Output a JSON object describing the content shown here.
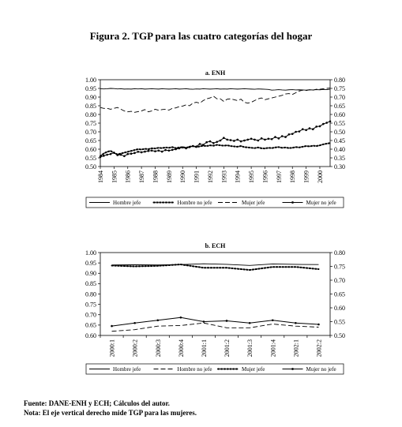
{
  "figure_title": "Figura 2. TGP para las cuatro categorías del hogar",
  "footer": {
    "source": "Fuente: DANE-ENH y ECH; Cálculos del autor.",
    "note": "Nota: El eje vertical derecho mide TGP para las mujeres."
  },
  "chart_data": [
    {
      "type": "line",
      "title": "a. ENH",
      "x_tick_labels": [
        "1984",
        "1985",
        "1986",
        "1987",
        "1988",
        "1989",
        "1990",
        "1991",
        "1992",
        "1993",
        "1994",
        "1995",
        "1996",
        "1997",
        "1998",
        "1999",
        "2000"
      ],
      "points_per_year": 4,
      "x": [
        1984.0,
        1984.25,
        1984.5,
        1984.75,
        1985.0,
        1985.25,
        1985.5,
        1985.75,
        1986.0,
        1986.25,
        1986.5,
        1986.75,
        1987.0,
        1987.25,
        1987.5,
        1987.75,
        1988.0,
        1988.25,
        1988.5,
        1988.75,
        1989.0,
        1989.25,
        1989.5,
        1989.75,
        1990.0,
        1990.25,
        1990.5,
        1990.75,
        1991.0,
        1991.25,
        1991.5,
        1991.75,
        1992.0,
        1992.25,
        1992.5,
        1992.75,
        1993.0,
        1993.25,
        1993.5,
        1993.75,
        1994.0,
        1994.25,
        1994.5,
        1994.75,
        1995.0,
        1995.25,
        1995.5,
        1995.75,
        1996.0,
        1996.25,
        1996.5,
        1996.75,
        1997.0,
        1997.25,
        1997.5,
        1997.75,
        1998.0,
        1998.25,
        1998.5,
        1998.75,
        1999.0,
        1999.25,
        1999.5,
        1999.75,
        2000.0,
        2000.25,
        2000.5,
        2000.75
      ],
      "y_left": {
        "min": 0.5,
        "max": 1.0,
        "ticks": [
          "0.50",
          "0.55",
          "0.60",
          "0.65",
          "0.70",
          "0.75",
          "0.80",
          "0.85",
          "0.90",
          "0.95",
          "1.00"
        ]
      },
      "y_right": {
        "min": 0.3,
        "max": 0.8,
        "ticks": [
          "0.30",
          "0.35",
          "0.40",
          "0.45",
          "0.50",
          "0.55",
          "0.60",
          "0.65",
          "0.70",
          "0.75",
          "0.80"
        ]
      },
      "series": [
        {
          "name": "Hombre jefe",
          "axis": "left",
          "style": "solid",
          "values": [
            0.948,
            0.947,
            0.948,
            0.95,
            0.949,
            0.947,
            0.948,
            0.946,
            0.947,
            0.946,
            0.948,
            0.947,
            0.948,
            0.946,
            0.947,
            0.948,
            0.947,
            0.946,
            0.948,
            0.947,
            0.946,
            0.947,
            0.948,
            0.946,
            0.947,
            0.948,
            0.946,
            0.945,
            0.947,
            0.946,
            0.948,
            0.947,
            0.946,
            0.947,
            0.948,
            0.946,
            0.947,
            0.946,
            0.948,
            0.947,
            0.946,
            0.947,
            0.948,
            0.947,
            0.946,
            0.945,
            0.947,
            0.946,
            0.945,
            0.944,
            0.94,
            0.941,
            0.943,
            0.941,
            0.94,
            0.942,
            0.943,
            0.941,
            0.942,
            0.941,
            0.94,
            0.942,
            0.941,
            0.943,
            0.942,
            0.944,
            0.943,
            0.945
          ]
        },
        {
          "name": "Hombre no jefe",
          "axis": "left",
          "style": "dotted",
          "values": [
            0.56,
            0.575,
            0.585,
            0.59,
            0.578,
            0.57,
            0.575,
            0.58,
            0.585,
            0.59,
            0.595,
            0.6,
            0.598,
            0.602,
            0.6,
            0.605,
            0.604,
            0.608,
            0.606,
            0.61,
            0.608,
            0.612,
            0.606,
            0.61,
            0.612,
            0.608,
            0.614,
            0.618,
            0.612,
            0.616,
            0.62,
            0.618,
            0.622,
            0.62,
            0.625,
            0.622,
            0.62,
            0.622,
            0.618,
            0.616,
            0.614,
            0.618,
            0.612,
            0.61,
            0.608,
            0.606,
            0.61,
            0.605,
            0.604,
            0.608,
            0.606,
            0.61,
            0.612,
            0.608,
            0.61,
            0.606,
            0.608,
            0.612,
            0.61,
            0.614,
            0.618,
            0.616,
            0.62,
            0.618,
            0.622,
            0.628,
            0.632,
            0.635
          ]
        },
        {
          "name": "Mujer jefe",
          "axis": "right",
          "style": "dashed",
          "values": [
            0.64,
            0.635,
            0.635,
            0.63,
            0.635,
            0.64,
            0.63,
            0.62,
            0.615,
            0.618,
            0.612,
            0.616,
            0.62,
            0.628,
            0.615,
            0.62,
            0.63,
            0.624,
            0.628,
            0.63,
            0.625,
            0.635,
            0.638,
            0.645,
            0.648,
            0.655,
            0.65,
            0.665,
            0.67,
            0.665,
            0.68,
            0.69,
            0.695,
            0.705,
            0.69,
            0.69,
            0.675,
            0.688,
            0.69,
            0.685,
            0.68,
            0.688,
            0.67,
            0.665,
            0.67,
            0.68,
            0.69,
            0.695,
            0.685,
            0.69,
            0.695,
            0.7,
            0.705,
            0.71,
            0.718,
            0.72,
            0.715,
            0.725,
            0.735,
            0.74,
            0.738,
            0.742,
            0.74,
            0.745,
            0.745,
            0.748,
            0.75,
            0.752
          ]
        },
        {
          "name": "Mujer no jefe",
          "axis": "right",
          "style": "solid-marker",
          "values": [
            0.355,
            0.362,
            0.368,
            0.372,
            0.38,
            0.366,
            0.368,
            0.36,
            0.372,
            0.374,
            0.378,
            0.385,
            0.382,
            0.386,
            0.39,
            0.392,
            0.388,
            0.392,
            0.386,
            0.395,
            0.392,
            0.396,
            0.4,
            0.405,
            0.41,
            0.405,
            0.412,
            0.418,
            0.415,
            0.43,
            0.425,
            0.44,
            0.445,
            0.435,
            0.442,
            0.45,
            0.465,
            0.455,
            0.452,
            0.448,
            0.455,
            0.445,
            0.45,
            0.455,
            0.46,
            0.455,
            0.45,
            0.462,
            0.455,
            0.46,
            0.458,
            0.47,
            0.462,
            0.475,
            0.47,
            0.485,
            0.488,
            0.5,
            0.502,
            0.515,
            0.51,
            0.52,
            0.515,
            0.53,
            0.532,
            0.545,
            0.552,
            0.56
          ]
        }
      ],
      "legend": "bottom"
    },
    {
      "type": "line",
      "title": "b. ECH",
      "categories": [
        "2000:1",
        "2000:2",
        "2000:3",
        "2000:4",
        "2001:1",
        "2001:2",
        "2001:3",
        "2001:4",
        "2002:1",
        "2002:2"
      ],
      "y_left": {
        "min": 0.6,
        "max": 1.0,
        "ticks": [
          "0.60",
          "0.65",
          "0.70",
          "0.75",
          "0.80",
          "0.85",
          "0.90",
          "0.95",
          "1.00"
        ]
      },
      "y_right": {
        "min": 0.5,
        "max": 0.8,
        "ticks": [
          "0.50",
          "0.55",
          "0.60",
          "0.65",
          "0.70",
          "0.75",
          "0.80"
        ]
      },
      "series": [
        {
          "name": "Hombre jefe",
          "axis": "left",
          "style": "solid",
          "values": [
            0.94,
            0.941,
            0.94,
            0.942,
            0.946,
            0.943,
            0.938,
            0.945,
            0.943,
            0.942
          ]
        },
        {
          "name": "Hombre no jefe",
          "axis": "left",
          "style": "dashed",
          "values": [
            0.62,
            0.628,
            0.645,
            0.648,
            0.66,
            0.637,
            0.637,
            0.655,
            0.645,
            0.64
          ]
        },
        {
          "name": "Mujer jefe",
          "axis": "right",
          "style": "dotted",
          "values": [
            0.753,
            0.75,
            0.752,
            0.757,
            0.745,
            0.745,
            0.737,
            0.748,
            0.748,
            0.74
          ]
        },
        {
          "name": "Mujer no jefe",
          "axis": "right",
          "style": "solid-marker",
          "values": [
            0.534,
            0.545,
            0.555,
            0.565,
            0.55,
            0.553,
            0.545,
            0.555,
            0.545,
            0.54
          ]
        }
      ],
      "legend": "bottom"
    }
  ]
}
